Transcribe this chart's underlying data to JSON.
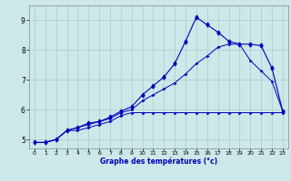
{
  "title": "",
  "xlabel": "Graphe des températures (°c)",
  "ylabel": "",
  "background_color": "#cce8e8",
  "grid_color": "#aacccc",
  "line_color": "#0000bb",
  "xlim": [
    -0.5,
    23.5
  ],
  "ylim": [
    4.7,
    9.5
  ],
  "xticks": [
    0,
    1,
    2,
    3,
    4,
    5,
    6,
    7,
    8,
    9,
    10,
    11,
    12,
    13,
    14,
    15,
    16,
    17,
    18,
    19,
    20,
    21,
    22,
    23
  ],
  "yticks": [
    5,
    6,
    7,
    8,
    9
  ],
  "line1_x": [
    0,
    1,
    2,
    3,
    4,
    5,
    6,
    7,
    8,
    9,
    10,
    11,
    12,
    13,
    14,
    15,
    16,
    17,
    18,
    19,
    20,
    21,
    22,
    23
  ],
  "line1_y": [
    4.9,
    4.9,
    5.0,
    5.3,
    5.3,
    5.4,
    5.5,
    5.6,
    5.8,
    5.9,
    5.9,
    5.9,
    5.9,
    5.9,
    5.9,
    5.9,
    5.9,
    5.9,
    5.9,
    5.9,
    5.9,
    5.9,
    5.9,
    5.9
  ],
  "line2_x": [
    0,
    1,
    2,
    3,
    4,
    5,
    6,
    7,
    8,
    9,
    10,
    11,
    12,
    13,
    14,
    15,
    16,
    17,
    18,
    19,
    20,
    21,
    22,
    23
  ],
  "line2_y": [
    4.9,
    4.9,
    5.0,
    5.3,
    5.4,
    5.5,
    5.6,
    5.7,
    5.9,
    6.0,
    6.3,
    6.5,
    6.7,
    6.9,
    7.2,
    7.55,
    7.8,
    8.1,
    8.2,
    8.2,
    7.65,
    7.3,
    6.95,
    5.95
  ],
  "line3_x": [
    0,
    1,
    2,
    3,
    4,
    5,
    6,
    7,
    8,
    9,
    10,
    11,
    12,
    13,
    14,
    15,
    16,
    17,
    18,
    19,
    20,
    21,
    22,
    23
  ],
  "line3_y": [
    4.9,
    4.9,
    5.0,
    5.3,
    5.4,
    5.55,
    5.6,
    5.75,
    5.95,
    6.1,
    6.5,
    6.8,
    7.1,
    7.55,
    8.3,
    9.1,
    8.85,
    8.6,
    8.3,
    8.2,
    8.2,
    8.15,
    7.4,
    5.95
  ]
}
